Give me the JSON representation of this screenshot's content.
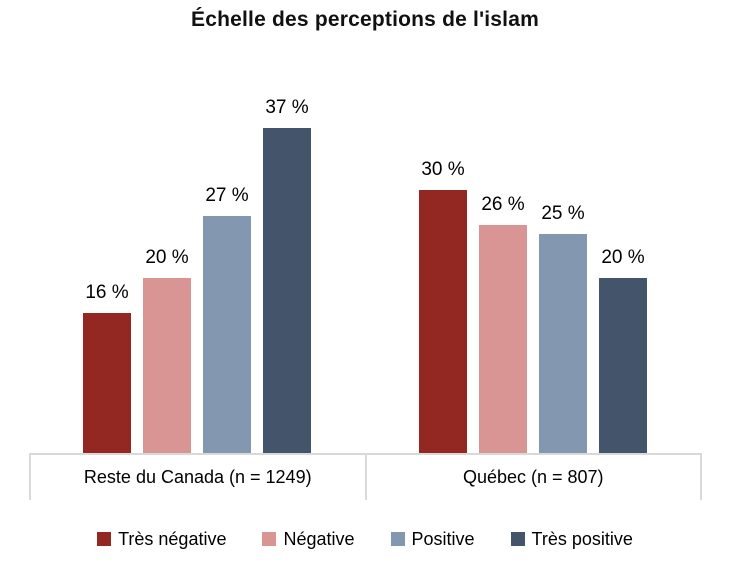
{
  "chart_data": {
    "type": "bar",
    "title": "Échelle des perceptions de l'islam",
    "categories": [
      "Reste du Canada (n = 1249)",
      "Québec (n = 807)"
    ],
    "series": [
      {
        "name": "Très négative",
        "color": "#932823",
        "values": [
          16,
          30
        ]
      },
      {
        "name": "Négative",
        "color": "#D99594",
        "values": [
          20,
          26
        ]
      },
      {
        "name": "Positive",
        "color": "#8497B0",
        "values": [
          27,
          25
        ]
      },
      {
        "name": "Très positive",
        "color": "#44546A",
        "values": [
          37,
          20
        ]
      }
    ],
    "data_labels": true,
    "data_label_suffix": " %",
    "ylim": [
      0,
      44
    ],
    "grid": false,
    "y_axis_visible": false,
    "legend_position": "bottom",
    "axis_line_color": "#D9D9D9"
  }
}
